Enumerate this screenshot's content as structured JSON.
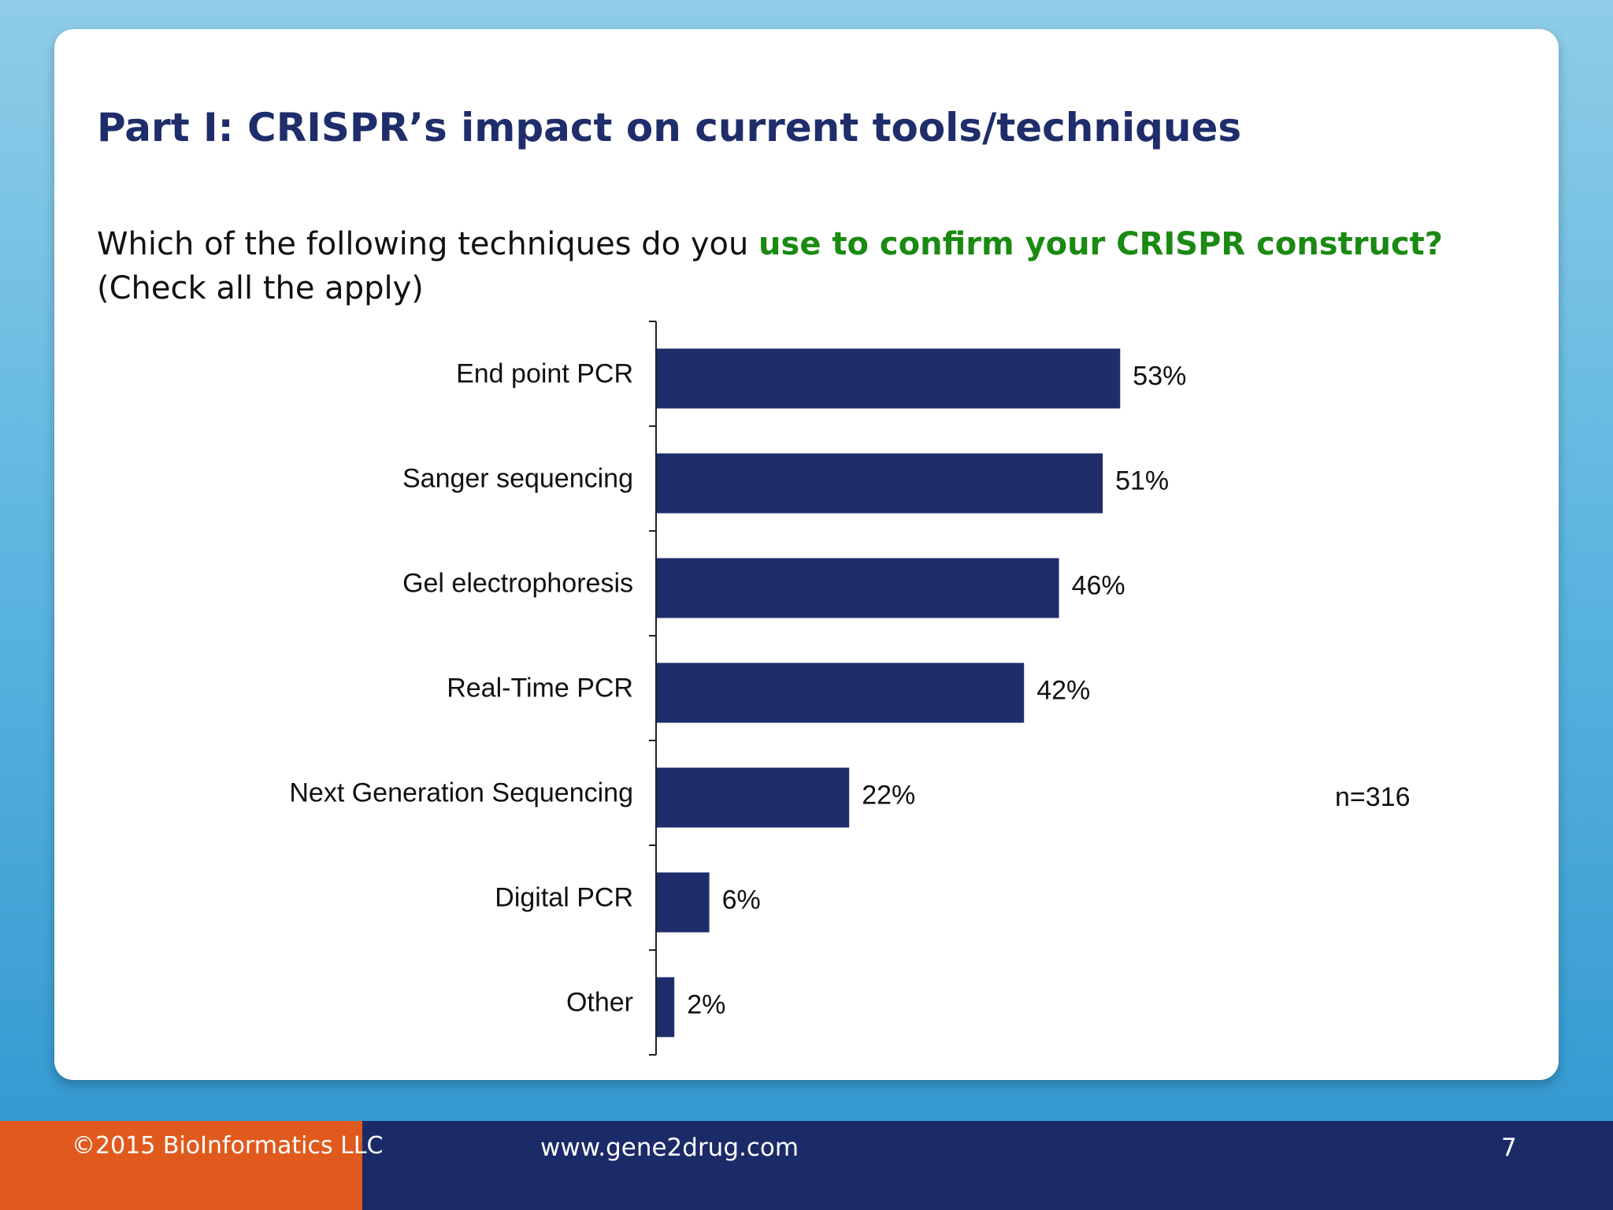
{
  "slide": {
    "title": "Part I: CRISPR’s impact on current tools/techniques",
    "question_prefix": "Which of the following techniques do you ",
    "question_highlight": "use to confirm your CRISPR construct?",
    "question_suffix": " (Check all the apply)",
    "sample_size": "n=316"
  },
  "footer": {
    "copyright": "©2015 BioInformatics LLC",
    "website": "www.gene2drug.com",
    "page_number": "7"
  },
  "colors": {
    "bar": "#1f2d6b",
    "title": "#1f2d6b",
    "highlight": "#1a8a12",
    "footer_navy": "#1b2b68",
    "footer_orange": "#e05a1e"
  },
  "chart_data": {
    "type": "bar",
    "orientation": "horizontal",
    "categories": [
      "End point PCR",
      "Sanger sequencing",
      "Gel electrophoresis",
      "Real-Time PCR",
      "Next Generation Sequencing",
      "Digital PCR",
      "Other"
    ],
    "values": [
      53,
      51,
      46,
      42,
      22,
      6,
      2
    ],
    "value_labels": [
      "53%",
      "51%",
      "46%",
      "42%",
      "22%",
      "6%",
      "2%"
    ],
    "xlim": [
      0,
      100
    ],
    "grid": false,
    "legend": "none"
  }
}
